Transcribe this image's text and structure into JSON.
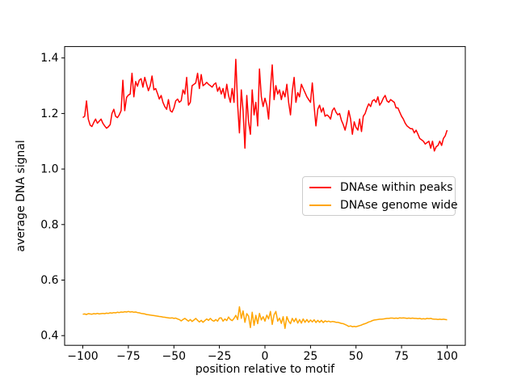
{
  "figure": {
    "background": "#ffffff",
    "title": ""
  },
  "chart_data": {
    "type": "line",
    "title": "",
    "xlabel": "position relative to motif",
    "ylabel": "average DNA signal",
    "xlim": [
      -110,
      110
    ],
    "ylim": [
      0.365,
      1.441
    ],
    "grid": false,
    "xticks": {
      "values": [
        -100,
        -75,
        -50,
        -25,
        0,
        25,
        50,
        75,
        100
      ],
      "labels": [
        "−100",
        "−75",
        "−50",
        "−25",
        "0",
        "25",
        "50",
        "75",
        "100"
      ]
    },
    "yticks": {
      "values": [
        0.4,
        0.6,
        0.8,
        1.0,
        1.2,
        1.4
      ],
      "labels": [
        "0.4",
        "0.6",
        "0.8",
        "1.0",
        "1.2",
        "1.4"
      ]
    },
    "legend": {
      "position": "center right",
      "border_color": "#cccccc"
    },
    "x_positions": {
      "from": -100,
      "to": 100,
      "step": 1
    },
    "series": [
      {
        "name": "DNAse within peaks",
        "color": "#ff0000",
        "values": [
          1.185,
          1.19,
          1.245,
          1.18,
          1.158,
          1.153,
          1.168,
          1.18,
          1.165,
          1.172,
          1.18,
          1.165,
          1.155,
          1.147,
          1.152,
          1.16,
          1.2,
          1.215,
          1.19,
          1.185,
          1.195,
          1.21,
          1.32,
          1.21,
          1.258,
          1.266,
          1.27,
          1.345,
          1.26,
          1.315,
          1.298,
          1.32,
          1.325,
          1.295,
          1.33,
          1.305,
          1.282,
          1.3,
          1.335,
          1.285,
          1.29,
          1.272,
          1.252,
          1.265,
          1.24,
          1.225,
          1.215,
          1.25,
          1.21,
          1.205,
          1.22,
          1.245,
          1.252,
          1.24,
          1.246,
          1.285,
          1.27,
          1.33,
          1.23,
          1.24,
          1.3,
          1.305,
          1.31,
          1.345,
          1.29,
          1.34,
          1.3,
          1.305,
          1.312,
          1.305,
          1.3,
          1.295,
          1.305,
          1.31,
          1.28,
          1.295,
          1.27,
          1.29,
          1.255,
          1.305,
          1.265,
          1.24,
          1.29,
          1.24,
          1.395,
          1.23,
          1.13,
          1.285,
          1.21,
          1.075,
          1.265,
          1.17,
          1.125,
          1.285,
          1.195,
          1.24,
          1.155,
          1.36,
          1.26,
          1.225,
          1.255,
          1.23,
          1.18,
          1.29,
          1.375,
          1.25,
          1.3,
          1.27,
          1.285,
          1.25,
          1.28,
          1.26,
          1.305,
          1.24,
          1.195,
          1.28,
          1.33,
          1.24,
          1.275,
          1.26,
          1.305,
          1.29,
          1.275,
          1.26,
          1.25,
          1.24,
          1.31,
          1.225,
          1.155,
          1.215,
          1.23,
          1.205,
          1.22,
          1.19,
          1.195,
          1.19,
          1.18,
          1.21,
          1.22,
          1.205,
          1.195,
          1.2,
          1.175,
          1.16,
          1.14,
          1.17,
          1.21,
          1.18,
          1.125,
          1.17,
          1.15,
          1.14,
          1.18,
          1.135,
          1.19,
          1.2,
          1.22,
          1.235,
          1.225,
          1.245,
          1.25,
          1.24,
          1.26,
          1.23,
          1.24,
          1.255,
          1.265,
          1.245,
          1.24,
          1.25,
          1.245,
          1.24,
          1.22,
          1.22,
          1.205,
          1.19,
          1.18,
          1.165,
          1.155,
          1.15,
          1.145,
          1.145,
          1.13,
          1.14,
          1.125,
          1.11,
          1.105,
          1.1,
          1.09,
          1.095,
          1.1,
          1.075,
          1.1,
          1.065,
          1.08,
          1.085,
          1.1,
          1.085,
          1.11,
          1.12,
          1.14
        ]
      },
      {
        "name": "DNAse genome wide",
        "color": "#ffa500",
        "values": [
          0.477,
          0.478,
          0.476,
          0.479,
          0.478,
          0.477,
          0.479,
          0.478,
          0.48,
          0.478,
          0.479,
          0.48,
          0.479,
          0.481,
          0.48,
          0.482,
          0.481,
          0.483,
          0.482,
          0.484,
          0.483,
          0.485,
          0.484,
          0.486,
          0.485,
          0.487,
          0.485,
          0.486,
          0.484,
          0.485,
          0.483,
          0.482,
          0.48,
          0.479,
          0.478,
          0.476,
          0.475,
          0.474,
          0.473,
          0.472,
          0.471,
          0.47,
          0.469,
          0.468,
          0.467,
          0.466,
          0.465,
          0.464,
          0.463,
          0.464,
          0.462,
          0.463,
          0.46,
          0.458,
          0.453,
          0.458,
          0.462,
          0.457,
          0.452,
          0.458,
          0.451,
          0.456,
          0.462,
          0.455,
          0.449,
          0.455,
          0.448,
          0.454,
          0.46,
          0.455,
          0.462,
          0.455,
          0.452,
          0.458,
          0.452,
          0.463,
          0.464,
          0.452,
          0.46,
          0.454,
          0.467,
          0.458,
          0.454,
          0.462,
          0.473,
          0.458,
          0.504,
          0.462,
          0.489,
          0.448,
          0.479,
          0.47,
          0.429,
          0.484,
          0.437,
          0.473,
          0.443,
          0.48,
          0.456,
          0.468,
          0.452,
          0.474,
          0.46,
          0.487,
          0.44,
          0.475,
          0.487,
          0.452,
          0.463,
          0.444,
          0.468,
          0.426,
          0.468,
          0.452,
          0.443,
          0.462,
          0.45,
          0.462,
          0.445,
          0.458,
          0.445,
          0.46,
          0.448,
          0.458,
          0.448,
          0.456,
          0.449,
          0.457,
          0.447,
          0.455,
          0.448,
          0.455,
          0.447,
          0.453,
          0.45,
          0.452,
          0.449,
          0.451,
          0.45,
          0.448,
          0.448,
          0.446,
          0.444,
          0.443,
          0.44,
          0.437,
          0.433,
          0.435,
          0.432,
          0.433,
          0.432,
          0.434,
          0.436,
          0.438,
          0.441,
          0.443,
          0.446,
          0.449,
          0.451,
          0.454,
          0.456,
          0.457,
          0.458,
          0.459,
          0.459,
          0.46,
          0.461,
          0.462,
          0.462,
          0.463,
          0.463,
          0.462,
          0.463,
          0.462,
          0.464,
          0.463,
          0.464,
          0.463,
          0.462,
          0.463,
          0.462,
          0.463,
          0.462,
          0.462,
          0.461,
          0.462,
          0.46,
          0.461,
          0.46,
          0.462,
          0.461,
          0.462,
          0.46,
          0.459,
          0.459,
          0.458,
          0.459,
          0.458,
          0.459,
          0.458,
          0.457
        ]
      }
    ]
  }
}
